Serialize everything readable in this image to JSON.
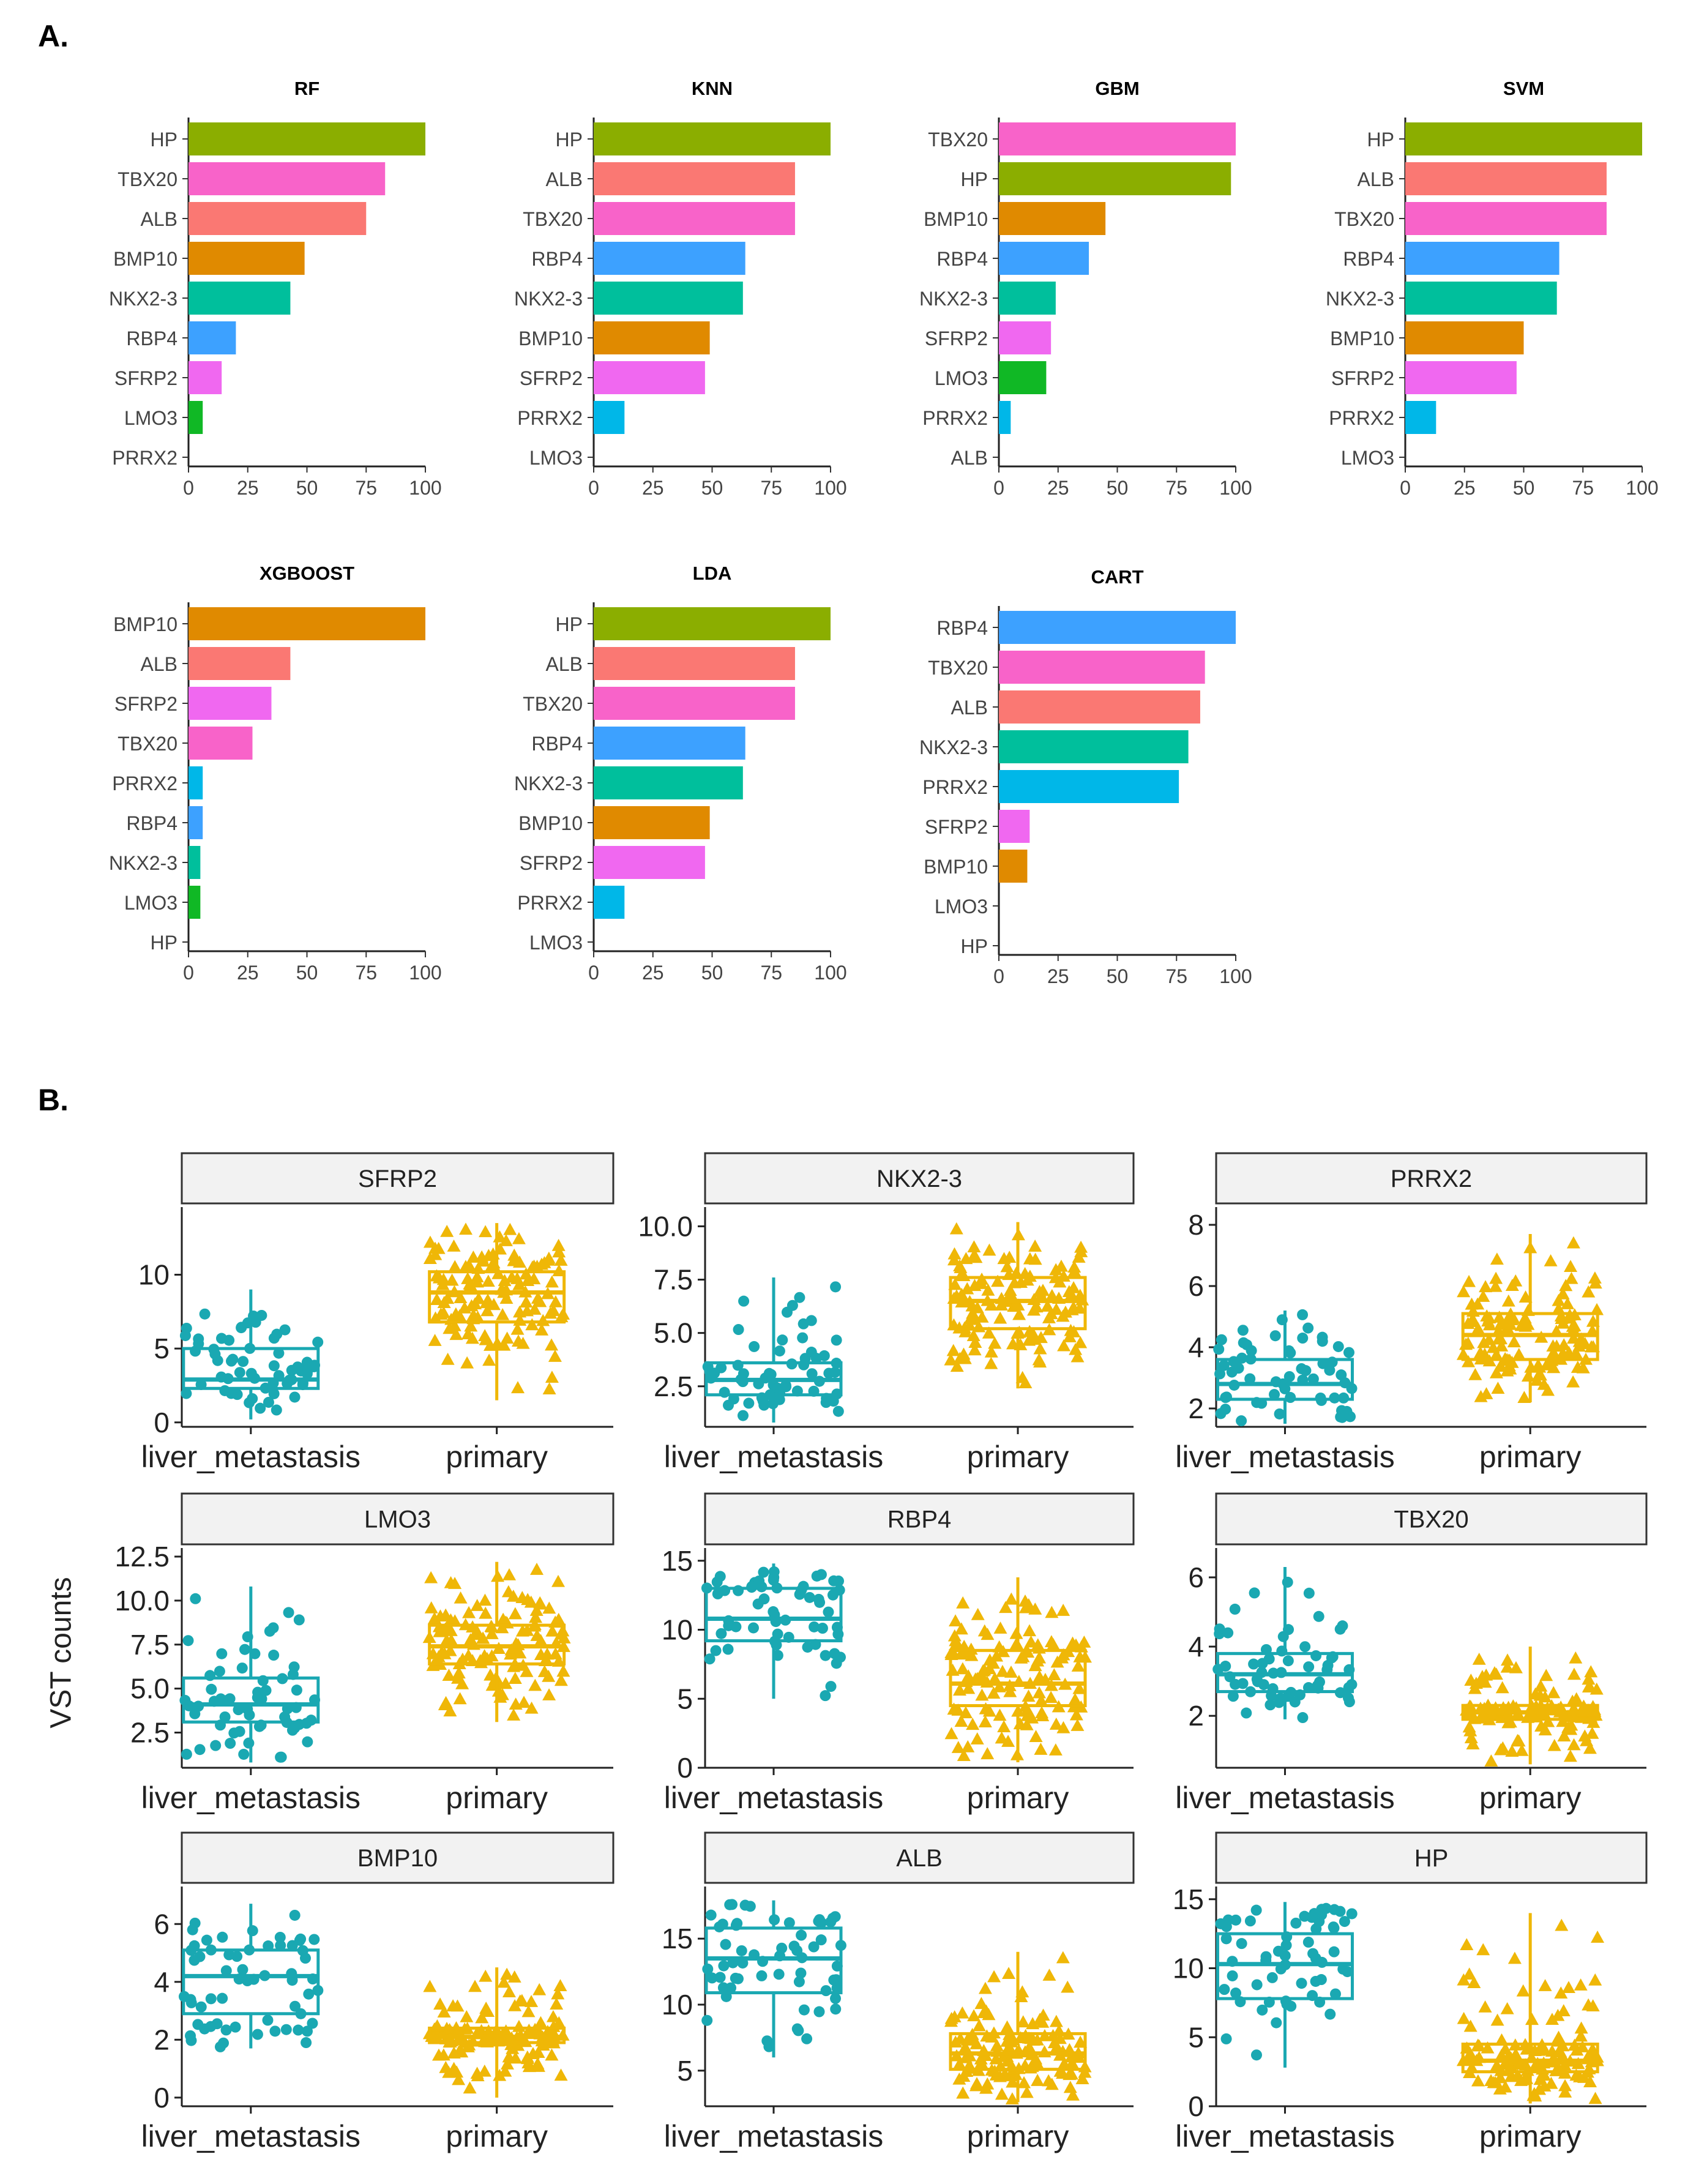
{
  "panel_labels": {
    "a": "A.",
    "b": "B."
  },
  "colors": {
    "HP": "#8BAE00",
    "TBX20": "#F863C9",
    "ALB": "#FA7873",
    "BMP10": "#E08A00",
    "NKX2-3": "#00BF9C",
    "RBP4": "#3DA1FF",
    "SFRP2": "#F068F0",
    "LMO3": "#10B825",
    "PRRX2": "#00B7E8",
    "liver_metastasis": "#1AA8B2",
    "primary": "#EFB707"
  },
  "boxplot_ylabel": "VST counts",
  "chart_data": [
    {
      "type": "bar",
      "orientation": "horizontal",
      "title": "RF",
      "categories": [
        "HP",
        "TBX20",
        "ALB",
        "BMP10",
        "NKX2-3",
        "RBP4",
        "SFRP2",
        "LMO3",
        "PRRX2"
      ],
      "values": [
        100,
        83,
        75,
        49,
        43,
        20,
        14,
        6,
        0
      ],
      "xlim": [
        0,
        100
      ],
      "xticks": [
        0,
        25,
        50,
        75,
        100
      ]
    },
    {
      "type": "bar",
      "orientation": "horizontal",
      "title": "KNN",
      "categories": [
        "HP",
        "ALB",
        "TBX20",
        "RBP4",
        "NKX2-3",
        "BMP10",
        "SFRP2",
        "PRRX2",
        "LMO3"
      ],
      "values": [
        100,
        85,
        85,
        64,
        63,
        49,
        47,
        13,
        0
      ],
      "xlim": [
        0,
        100
      ],
      "xticks": [
        0,
        25,
        50,
        75,
        100
      ]
    },
    {
      "type": "bar",
      "orientation": "horizontal",
      "title": "GBM",
      "categories": [
        "TBX20",
        "HP",
        "BMP10",
        "RBP4",
        "NKX2-3",
        "SFRP2",
        "LMO3",
        "PRRX2",
        "ALB"
      ],
      "values": [
        100,
        98,
        45,
        38,
        24,
        22,
        20,
        5,
        0
      ],
      "xlim": [
        0,
        100
      ],
      "xticks": [
        0,
        25,
        50,
        75,
        100
      ]
    },
    {
      "type": "bar",
      "orientation": "horizontal",
      "title": "SVM",
      "categories": [
        "HP",
        "ALB",
        "TBX20",
        "RBP4",
        "NKX2-3",
        "BMP10",
        "SFRP2",
        "PRRX2",
        "LMO3"
      ],
      "values": [
        100,
        85,
        85,
        65,
        64,
        50,
        47,
        13,
        0
      ],
      "xlim": [
        0,
        100
      ],
      "xticks": [
        0,
        25,
        50,
        75,
        100
      ]
    },
    {
      "type": "bar",
      "orientation": "horizontal",
      "title": "XGBOOST",
      "categories": [
        "BMP10",
        "ALB",
        "SFRP2",
        "TBX20",
        "PRRX2",
        "RBP4",
        "NKX2-3",
        "LMO3",
        "HP"
      ],
      "values": [
        100,
        43,
        35,
        27,
        6,
        6,
        5,
        5,
        0
      ],
      "xlim": [
        0,
        100
      ],
      "xticks": [
        0,
        25,
        50,
        75,
        100
      ]
    },
    {
      "type": "bar",
      "orientation": "horizontal",
      "title": "LDA",
      "categories": [
        "HP",
        "ALB",
        "TBX20",
        "RBP4",
        "NKX2-3",
        "BMP10",
        "SFRP2",
        "PRRX2",
        "LMO3"
      ],
      "values": [
        100,
        85,
        85,
        64,
        63,
        49,
        47,
        13,
        0
      ],
      "xlim": [
        0,
        100
      ],
      "xticks": [
        0,
        25,
        50,
        75,
        100
      ]
    },
    {
      "type": "bar",
      "orientation": "horizontal",
      "title": "CART",
      "categories": [
        "RBP4",
        "TBX20",
        "ALB",
        "NKX2-3",
        "PRRX2",
        "SFRP2",
        "BMP10",
        "LMO3",
        "HP"
      ],
      "values": [
        100,
        87,
        85,
        80,
        76,
        13,
        12,
        0,
        0
      ],
      "xlim": [
        0,
        100
      ],
      "xticks": [
        0,
        25,
        50,
        75,
        100
      ]
    },
    {
      "type": "boxplot",
      "title": "SFRP2",
      "categories": [
        "liver_metastasis",
        "primary"
      ],
      "boxes": [
        {
          "min": 0.2,
          "q1": 2.3,
          "median": 2.9,
          "q3": 5.0,
          "max": 9.0
        },
        {
          "min": 1.5,
          "q1": 6.8,
          "median": 8.8,
          "q3": 10.2,
          "max": 13.5
        }
      ],
      "ylim": [
        -0.3,
        14.0
      ],
      "yticks": [
        0,
        5,
        10
      ],
      "ytick_labels": [
        "0",
        "5",
        "10"
      ]
    },
    {
      "type": "boxplot",
      "title": "NKX2-3",
      "categories": [
        "liver_metastasis",
        "primary"
      ],
      "boxes": [
        {
          "min": 0.8,
          "q1": 2.1,
          "median": 2.8,
          "q3": 3.6,
          "max": 7.6
        },
        {
          "min": 2.4,
          "q1": 5.2,
          "median": 6.5,
          "q3": 7.6,
          "max": 10.2
        }
      ],
      "ylim": [
        0.6,
        10.5
      ],
      "yticks": [
        2.5,
        5.0,
        7.5,
        10.0
      ],
      "ytick_labels": [
        "2.5",
        "5.0",
        "7.5",
        "10.0"
      ]
    },
    {
      "type": "boxplot",
      "title": "PRRX2",
      "categories": [
        "liver_metastasis",
        "primary"
      ],
      "boxes": [
        {
          "min": 1.5,
          "q1": 2.3,
          "median": 2.8,
          "q3": 3.6,
          "max": 5.2
        },
        {
          "min": 2.2,
          "q1": 3.6,
          "median": 4.4,
          "q3": 5.1,
          "max": 7.7
        }
      ],
      "ylim": [
        1.4,
        8.3
      ],
      "yticks": [
        2,
        4,
        6,
        8
      ],
      "ytick_labels": [
        "2",
        "4",
        "6",
        "8"
      ]
    },
    {
      "type": "boxplot",
      "title": "LMO3",
      "categories": [
        "liver_metastasis",
        "primary"
      ],
      "boxes": [
        {
          "min": 0.8,
          "q1": 3.1,
          "median": 4.1,
          "q3": 5.6,
          "max": 10.8
        },
        {
          "min": 3.1,
          "q1": 6.4,
          "median": 7.4,
          "q3": 8.6,
          "max": 12.2
        }
      ],
      "ylim": [
        0.5,
        12.5
      ],
      "yticks": [
        2.5,
        5.0,
        7.5,
        10.0,
        12.5
      ],
      "ytick_labels": [
        "2.5",
        "5.0",
        "7.5",
        "10.0",
        "12.5"
      ]
    },
    {
      "type": "boxplot",
      "title": "RBP4",
      "categories": [
        "liver_metastasis",
        "primary"
      ],
      "boxes": [
        {
          "min": 5.0,
          "q1": 9.2,
          "median": 10.8,
          "q3": 13.0,
          "max": 14.8
        },
        {
          "min": 0.4,
          "q1": 4.5,
          "median": 6.1,
          "q3": 8.5,
          "max": 13.8
        }
      ],
      "ylim": [
        0.0,
        15.3
      ],
      "yticks": [
        0,
        5,
        10,
        15
      ],
      "ytick_labels": [
        "0",
        "5",
        "10",
        "15"
      ]
    },
    {
      "type": "boxplot",
      "title": "TBX20",
      "categories": [
        "liver_metastasis",
        "primary"
      ],
      "boxes": [
        {
          "min": 1.9,
          "q1": 2.7,
          "median": 3.2,
          "q3": 3.8,
          "max": 6.3
        },
        {
          "min": 0.6,
          "q1": 1.9,
          "median": 2.1,
          "q3": 2.3,
          "max": 4.0
        }
      ],
      "ylim": [
        0.5,
        6.6
      ],
      "yticks": [
        2,
        4,
        6
      ],
      "ytick_labels": [
        "2",
        "4",
        "6"
      ]
    },
    {
      "type": "boxplot",
      "title": "BMP10",
      "categories": [
        "liver_metastasis",
        "primary"
      ],
      "boxes": [
        {
          "min": 1.7,
          "q1": 2.9,
          "median": 4.2,
          "q3": 5.1,
          "max": 6.7
        },
        {
          "min": 0.0,
          "q1": 1.9,
          "median": 2.1,
          "q3": 2.4,
          "max": 4.5
        }
      ],
      "ylim": [
        -0.3,
        7.0
      ],
      "yticks": [
        0,
        2,
        4,
        6
      ],
      "ytick_labels": [
        "0",
        "2",
        "4",
        "6"
      ]
    },
    {
      "type": "boxplot",
      "title": "ALB",
      "categories": [
        "liver_metastasis",
        "primary"
      ],
      "boxes": [
        {
          "min": 6.0,
          "q1": 10.9,
          "median": 13.5,
          "q3": 15.8,
          "max": 17.9
        },
        {
          "min": 2.6,
          "q1": 5.1,
          "median": 6.3,
          "q3": 7.8,
          "max": 14.0
        }
      ],
      "ylim": [
        2.3,
        18.3
      ],
      "yticks": [
        5,
        10,
        15
      ],
      "ytick_labels": [
        "5",
        "10",
        "15"
      ]
    },
    {
      "type": "boxplot",
      "title": "HP",
      "categories": [
        "liver_metastasis",
        "primary"
      ],
      "boxes": [
        {
          "min": 2.8,
          "q1": 7.8,
          "median": 10.3,
          "q3": 12.5,
          "max": 14.8
        },
        {
          "min": 0.2,
          "q1": 2.5,
          "median": 3.3,
          "q3": 4.5,
          "max": 14.0
        }
      ],
      "ylim": [
        0.0,
        15.3
      ],
      "yticks": [
        0,
        5,
        10,
        15
      ],
      "ytick_labels": [
        "0",
        "5",
        "10",
        "15"
      ]
    }
  ]
}
